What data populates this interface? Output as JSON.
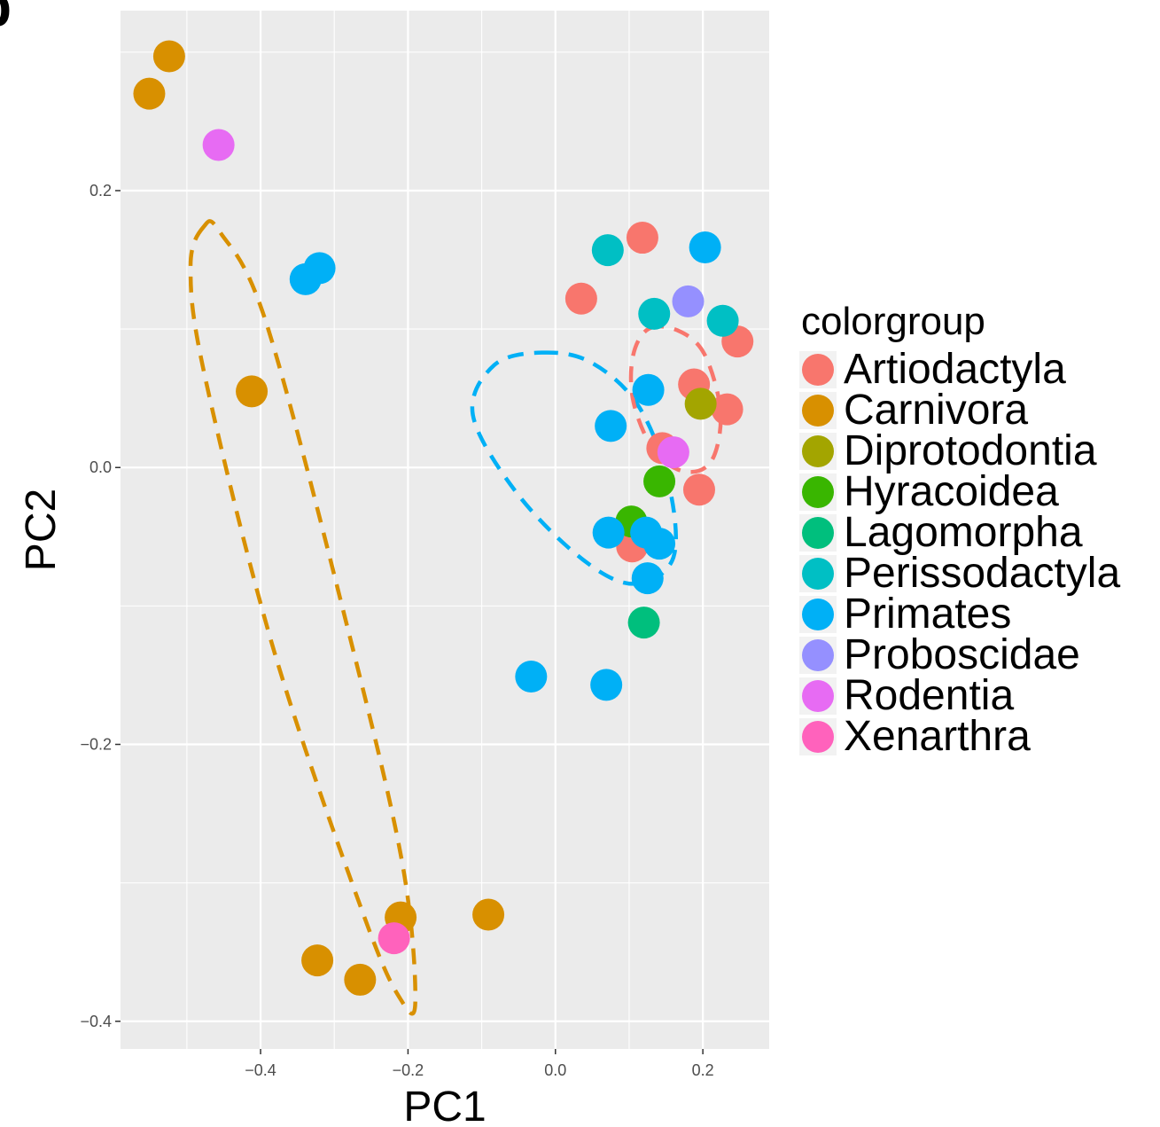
{
  "panel_letter": "b",
  "chart_data": {
    "type": "scatter",
    "xlabel": "PC1",
    "ylabel": "PC2",
    "xlim": [
      -0.59,
      0.29
    ],
    "ylim": [
      -0.42,
      0.33
    ],
    "xticks": [
      -0.4,
      -0.2,
      0.0,
      0.2
    ],
    "xtick_labels": [
      "−0.4",
      "−0.2",
      "0.0",
      "0.2"
    ],
    "yticks": [
      -0.4,
      -0.2,
      0.0,
      0.2
    ],
    "ytick_labels": [
      "−0.4",
      "−0.2",
      "0.0",
      "0.2"
    ],
    "grid": true,
    "legend_position": "right",
    "legend_title": "colorgroup",
    "series": [
      {
        "name": "Artiodactyla",
        "color": "#F8766D",
        "points": [
          [
            0.118,
            0.166
          ],
          [
            0.035,
            0.122
          ],
          [
            0.247,
            0.091
          ],
          [
            0.188,
            0.06
          ],
          [
            0.233,
            0.042
          ],
          [
            0.145,
            0.014
          ],
          [
            0.195,
            -0.016
          ],
          [
            0.104,
            -0.057
          ]
        ]
      },
      {
        "name": "Carnivora",
        "color": "#D89000",
        "points": [
          [
            -0.524,
            0.297
          ],
          [
            -0.551,
            0.27
          ],
          [
            -0.412,
            0.055
          ],
          [
            -0.21,
            -0.325
          ],
          [
            -0.091,
            -0.323
          ],
          [
            -0.323,
            -0.356
          ],
          [
            -0.265,
            -0.37
          ]
        ]
      },
      {
        "name": "Diprotodontia",
        "color": "#A3A500",
        "points": [
          [
            0.197,
            0.046
          ]
        ]
      },
      {
        "name": "Hyracoidea",
        "color": "#39B600",
        "points": [
          [
            0.141,
            -0.01
          ],
          [
            0.103,
            -0.039
          ]
        ]
      },
      {
        "name": "Lagomorpha",
        "color": "#00BF7D",
        "points": [
          [
            0.12,
            -0.112
          ]
        ]
      },
      {
        "name": "Perissodactyla",
        "color": "#00BFC4",
        "points": [
          [
            0.071,
            0.157
          ],
          [
            0.134,
            0.111
          ],
          [
            0.227,
            0.106
          ]
        ]
      },
      {
        "name": "Primates",
        "color": "#00B0F6",
        "points": [
          [
            -0.32,
            0.144
          ],
          [
            -0.339,
            0.136
          ],
          [
            0.203,
            0.159
          ],
          [
            0.126,
            0.056
          ],
          [
            0.075,
            0.03
          ],
          [
            0.072,
            -0.047
          ],
          [
            0.123,
            -0.047
          ],
          [
            0.141,
            -0.055
          ],
          [
            0.125,
            -0.08
          ],
          [
            -0.033,
            -0.151
          ],
          [
            0.069,
            -0.157
          ]
        ]
      },
      {
        "name": "Proboscidae",
        "color": "#9590FF",
        "points": [
          [
            0.18,
            0.12
          ]
        ]
      },
      {
        "name": "Rodentia",
        "color": "#E76BF3",
        "points": [
          [
            -0.457,
            0.233
          ],
          [
            0.16,
            0.011
          ]
        ]
      },
      {
        "name": "Xenarthra",
        "color": "#FF62BC",
        "points": [
          [
            -0.219,
            -0.34
          ]
        ]
      }
    ],
    "ellipses": [
      {
        "group": "Carnivora",
        "color": "#D89000",
        "path": [
          [
            -0.477,
            0.174
          ],
          [
            -0.495,
            0.145
          ],
          [
            -0.476,
            0.067
          ],
          [
            -0.382,
            -0.132
          ],
          [
            -0.259,
            -0.325
          ],
          [
            -0.209,
            -0.385
          ],
          [
            -0.19,
            -0.384
          ],
          [
            -0.208,
            -0.285
          ],
          [
            -0.28,
            -0.12
          ],
          [
            -0.392,
            0.104
          ],
          [
            -0.455,
            0.17
          ],
          [
            -0.477,
            0.174
          ]
        ]
      },
      {
        "group": "Primates",
        "color": "#00B0F6",
        "points_note": "",
        "path": [
          [
            -0.018,
            0.083
          ],
          [
            0.048,
            0.076
          ],
          [
            0.112,
            0.045
          ],
          [
            0.153,
            -0.01
          ],
          [
            0.16,
            -0.065
          ],
          [
            0.106,
            -0.084
          ],
          [
            0.036,
            -0.066
          ],
          [
            -0.053,
            -0.018
          ],
          [
            -0.112,
            0.038
          ],
          [
            -0.083,
            0.074
          ],
          [
            -0.018,
            0.083
          ]
        ]
      },
      {
        "group": "Artiodactyla",
        "color": "#F8766D",
        "path": [
          [
            0.126,
            0.1
          ],
          [
            0.166,
            0.099
          ],
          [
            0.202,
            0.082
          ],
          [
            0.224,
            0.04
          ],
          [
            0.212,
            0.005
          ],
          [
            0.176,
            -0.003
          ],
          [
            0.134,
            0.012
          ],
          [
            0.106,
            0.047
          ],
          [
            0.105,
            0.08
          ],
          [
            0.126,
            0.1
          ]
        ]
      }
    ]
  }
}
